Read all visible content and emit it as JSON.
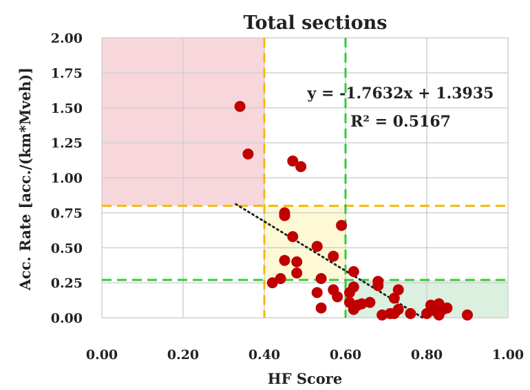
{
  "chart_data": {
    "type": "scatter",
    "title": "Total sections",
    "xlabel": "HF Score",
    "ylabel": "Acc. Rate [acc./(km*Mveh)]",
    "xlim": [
      0,
      1
    ],
    "ylim": [
      0,
      2
    ],
    "x_ticks": [
      "0.00",
      "0.20",
      "0.40",
      "0.60",
      "0.80",
      "1.00"
    ],
    "y_ticks": [
      "0.00",
      "0.25",
      "0.50",
      "0.75",
      "1.00",
      "1.25",
      "1.50",
      "1.75",
      "2.00"
    ],
    "grid": true,
    "point_color": "#c00000",
    "points": [
      {
        "x": 0.34,
        "y": 1.51
      },
      {
        "x": 0.36,
        "y": 1.17
      },
      {
        "x": 0.47,
        "y": 1.12
      },
      {
        "x": 0.49,
        "y": 1.08
      },
      {
        "x": 0.45,
        "y": 0.75
      },
      {
        "x": 0.45,
        "y": 0.73
      },
      {
        "x": 0.47,
        "y": 0.58
      },
      {
        "x": 0.59,
        "y": 0.66
      },
      {
        "x": 0.53,
        "y": 0.51
      },
      {
        "x": 0.57,
        "y": 0.44
      },
      {
        "x": 0.45,
        "y": 0.41
      },
      {
        "x": 0.48,
        "y": 0.4
      },
      {
        "x": 0.48,
        "y": 0.32
      },
      {
        "x": 0.62,
        "y": 0.33
      },
      {
        "x": 0.44,
        "y": 0.28
      },
      {
        "x": 0.42,
        "y": 0.25
      },
      {
        "x": 0.54,
        "y": 0.28
      },
      {
        "x": 0.53,
        "y": 0.18
      },
      {
        "x": 0.57,
        "y": 0.2
      },
      {
        "x": 0.58,
        "y": 0.15
      },
      {
        "x": 0.54,
        "y": 0.07
      },
      {
        "x": 0.61,
        "y": 0.18
      },
      {
        "x": 0.62,
        "y": 0.22
      },
      {
        "x": 0.61,
        "y": 0.11
      },
      {
        "x": 0.63,
        "y": 0.09
      },
      {
        "x": 0.62,
        "y": 0.06
      },
      {
        "x": 0.64,
        "y": 0.1
      },
      {
        "x": 0.66,
        "y": 0.11
      },
      {
        "x": 0.68,
        "y": 0.26
      },
      {
        "x": 0.68,
        "y": 0.23
      },
      {
        "x": 0.73,
        "y": 0.2
      },
      {
        "x": 0.72,
        "y": 0.14
      },
      {
        "x": 0.69,
        "y": 0.02
      },
      {
        "x": 0.71,
        "y": 0.03
      },
      {
        "x": 0.72,
        "y": 0.03
      },
      {
        "x": 0.73,
        "y": 0.06
      },
      {
        "x": 0.76,
        "y": 0.03
      },
      {
        "x": 0.8,
        "y": 0.03
      },
      {
        "x": 0.81,
        "y": 0.09
      },
      {
        "x": 0.82,
        "y": 0.05
      },
      {
        "x": 0.83,
        "y": 0.1
      },
      {
        "x": 0.83,
        "y": 0.02
      },
      {
        "x": 0.84,
        "y": 0.06
      },
      {
        "x": 0.85,
        "y": 0.07
      },
      {
        "x": 0.9,
        "y": 0.02
      }
    ],
    "trendline": {
      "slope": -1.7632,
      "intercept": 1.3935,
      "x_range": [
        0.33,
        0.79
      ],
      "color": "#222222",
      "style": "dotted"
    },
    "equation": "y = -1.7632x + 1.3935",
    "r2_label": "R² = 0.5167",
    "threshold_lines": [
      {
        "orientation": "vertical",
        "value": 0.4,
        "color": "#f5b800"
      },
      {
        "orientation": "horizontal",
        "value": 0.8,
        "color": "#f5b800"
      },
      {
        "orientation": "vertical",
        "value": 0.6,
        "color": "#33cc33"
      },
      {
        "orientation": "horizontal",
        "value": 0.27,
        "color": "#33cc33"
      }
    ],
    "regions": [
      {
        "x": [
          0.0,
          0.4
        ],
        "y": [
          0.8,
          2.0
        ],
        "color": "#f8d7dc"
      },
      {
        "x": [
          0.4,
          0.6
        ],
        "y": [
          0.27,
          0.8
        ],
        "color": "#fdf9d6"
      },
      {
        "x": [
          0.6,
          1.0
        ],
        "y": [
          0.0,
          0.27
        ],
        "color": "#dcf0e0"
      }
    ]
  }
}
